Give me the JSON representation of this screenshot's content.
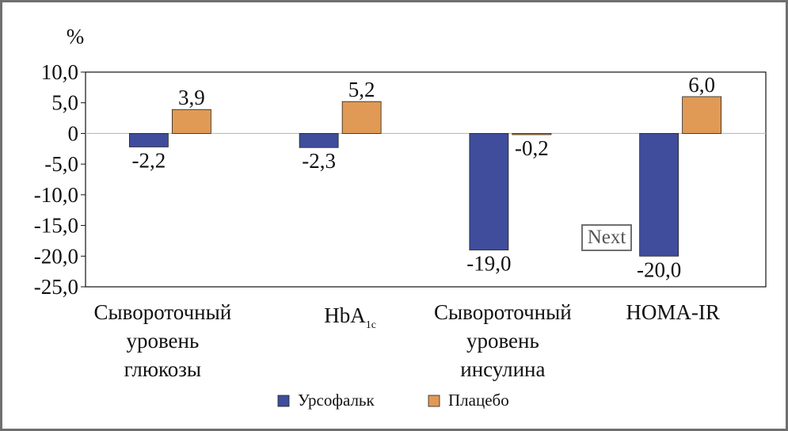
{
  "chart_data": {
    "type": "bar",
    "y_unit_label": "%",
    "ylim": [
      -25,
      10
    ],
    "y_ticks": [
      "10,0",
      "5,0",
      "0",
      "-5,0",
      "-10,0",
      "-15,0",
      "-20,0",
      "-25,0"
    ],
    "y_tick_values": [
      10,
      5,
      0,
      -5,
      -10,
      -15,
      -20,
      -25
    ],
    "categories": [
      [
        "Сывороточный",
        "уровень",
        "глюкозы"
      ],
      [
        "HbA",
        "1c"
      ],
      [
        "Сывороточный",
        "уровень",
        "инсулина"
      ],
      [
        "HOMA-IR"
      ]
    ],
    "series": [
      {
        "name": "Урсофальк",
        "color": "#3f4d9c",
        "values": [
          -2.2,
          -2.3,
          -19.0,
          -20.0
        ],
        "labels": [
          "-2,2",
          "-2,3",
          "-19,0",
          "-20,0"
        ]
      },
      {
        "name": "Плацебо",
        "color": "#e09a56",
        "values": [
          3.9,
          5.2,
          -0.2,
          6.0
        ],
        "labels": [
          "3,9",
          "5,2",
          "-0,2",
          "6,0"
        ]
      }
    ],
    "grid": false,
    "legend_position": "bottom-center"
  },
  "next_button": {
    "label": "Next"
  }
}
